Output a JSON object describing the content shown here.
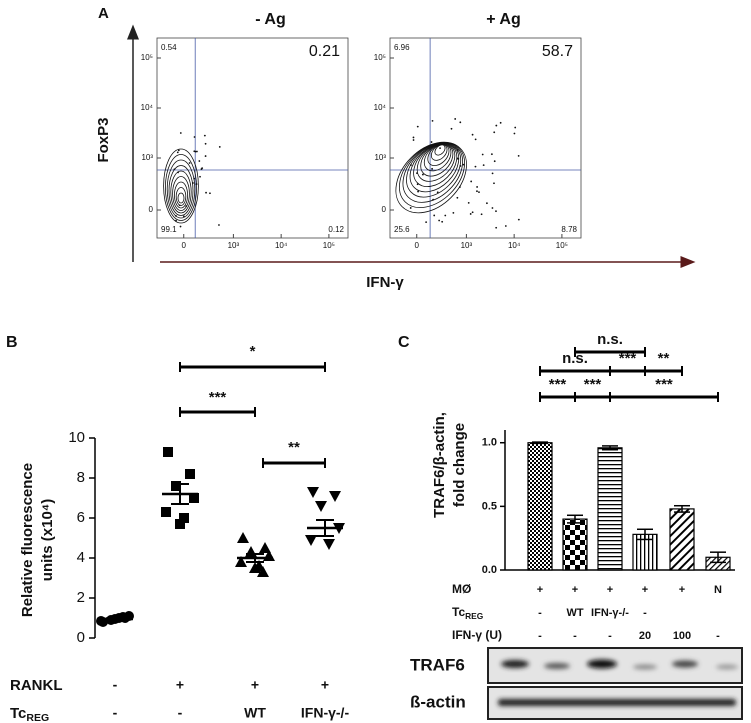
{
  "chart_data": [
    {
      "type": "flow",
      "panel": "A",
      "title": "- Ag",
      "ylabel": "FoxP3",
      "xlabel": "IFN-γ",
      "quadrants": {
        "ul": 0.54,
        "ur": 0.21,
        "ll": 99.1,
        "lr": 0.12
      },
      "xticks": [
        0,
        {
          "value": 1000,
          "label": "10³"
        },
        {
          "value": 10000,
          "label": "10⁴"
        },
        {
          "value": 100000,
          "label": "10⁵"
        }
      ],
      "yticks": [
        0,
        {
          "value": 1000,
          "label": "10³"
        },
        {
          "value": 10000,
          "label": "10⁴"
        },
        {
          "value": 100000,
          "label": "10⁵"
        }
      ],
      "scale": "logicle"
    },
    {
      "type": "flow",
      "title": "+ Ag",
      "quadrants": {
        "ul": 6.96,
        "ur": 58.7,
        "ll": 25.6,
        "lr": 8.78
      },
      "xticks": [
        0,
        {
          "value": 1000,
          "label": "10³"
        },
        {
          "value": 10000,
          "label": "10⁴"
        },
        {
          "value": 100000,
          "label": "10⁵"
        }
      ],
      "yticks": [
        0,
        {
          "value": 1000,
          "label": "10³"
        },
        {
          "value": 10000,
          "label": "10⁴"
        },
        {
          "value": 100000,
          "label": "10⁵"
        }
      ],
      "scale": "logicle"
    },
    {
      "type": "dot",
      "panel": "B",
      "ylabel": [
        "Relative fluorescence",
        "units (x10⁴)"
      ],
      "ylim": [
        0,
        10
      ],
      "yticks": [
        0,
        2,
        4,
        6,
        8,
        10
      ],
      "groups": [
        {
          "marker": "circle",
          "values": [
            0.8,
            1.0,
            0.9,
            1.1,
            0.85,
            1.0,
            0.95,
            1.05
          ],
          "mean": 0.95,
          "sem": 0.04
        },
        {
          "marker": "square",
          "values": [
            9.3,
            8.2,
            7.6,
            7.0,
            6.3,
            6.0,
            5.7
          ],
          "mean": 7.2,
          "sem": 0.5
        },
        {
          "marker": "triangle",
          "values": [
            5.0,
            4.5,
            4.3,
            4.1,
            3.8,
            3.6,
            3.5,
            3.3
          ],
          "mean": 4.0,
          "sem": 0.2
        },
        {
          "marker": "triangle-down",
          "values": [
            7.3,
            7.1,
            6.6,
            5.5,
            4.9,
            4.7
          ],
          "mean": 5.5,
          "sem": 0.4
        }
      ],
      "rows": [
        {
          "name": "RANKL",
          "values": [
            "-",
            "+",
            "+",
            "+"
          ]
        },
        {
          "name": "Tc",
          "name_sub": "REG",
          "values": [
            "-",
            "-",
            "WT",
            "IFN-γ-/-"
          ]
        }
      ],
      "significance": [
        {
          "groups": [
            1,
            2
          ],
          "label": "***"
        },
        {
          "groups": [
            1,
            3
          ],
          "label": "*"
        },
        {
          "groups": [
            2,
            3
          ],
          "label": "**"
        }
      ]
    },
    {
      "type": "bar",
      "panel": "C",
      "ylabel": [
        "TRAF6/β-actin,",
        "fold change"
      ],
      "ylim": [
        0,
        1.1
      ],
      "yticks": [
        {
          "value": 0,
          "label": "0.0"
        },
        {
          "value": 0.5,
          "label": "0.5"
        },
        {
          "value": 1,
          "label": "1.0"
        }
      ],
      "values": [
        1.0,
        0.4,
        0.96,
        0.28,
        0.48,
        0.1
      ],
      "errors": [
        0.005,
        0.03,
        0.015,
        0.04,
        0.025,
        0.04
      ],
      "patterns": [
        "checker-fine",
        "checker",
        "hstripe",
        "vstripe",
        "diag",
        "diag-fine"
      ],
      "rows": [
        {
          "name": "MØ",
          "values": [
            "+",
            "+",
            "+",
            "+",
            "+",
            "N"
          ]
        },
        {
          "name": "Tc",
          "name_sub": "REG",
          "values": [
            "-",
            "WT",
            "IFN-γ-/-",
            "-",
            null,
            null
          ]
        },
        {
          "name": "IFN-γ (U)",
          "values": [
            "-",
            "-",
            "-",
            "20",
            "100",
            "-"
          ]
        }
      ],
      "significance": [
        {
          "groups": [
            0,
            1
          ],
          "label": "***"
        },
        {
          "groups": [
            1,
            2
          ],
          "label": "***"
        },
        {
          "groups": [
            2,
            5
          ],
          "label": "***"
        },
        {
          "groups": [
            0,
            2
          ],
          "label": "n.s."
        },
        {
          "groups": [
            2,
            3
          ],
          "label": "***"
        },
        {
          "groups": [
            3,
            4
          ],
          "label": "**"
        },
        {
          "groups": [
            1,
            3
          ],
          "label": "n.s."
        }
      ],
      "blot": [
        "TRAF6",
        "ß-actin"
      ]
    }
  ]
}
